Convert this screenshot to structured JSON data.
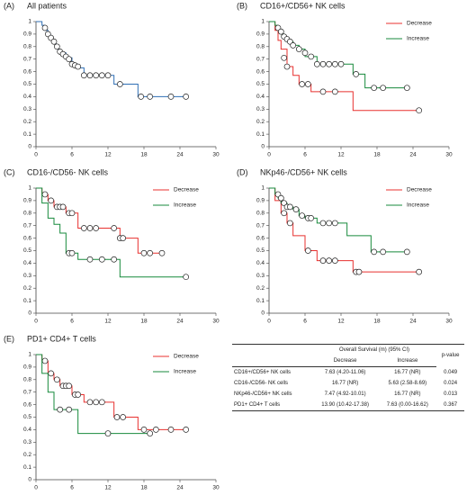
{
  "chart_data": [
    {
      "type": "step",
      "label": "(A)",
      "title": "All patients",
      "xlim": [
        0,
        30
      ],
      "xticks": [
        0,
        6,
        12,
        18,
        24,
        30
      ],
      "ylim": [
        0,
        1
      ],
      "yticks": [
        0,
        0.1,
        0.2,
        0.3,
        0.4,
        0.5,
        0.6,
        0.7,
        0.8,
        0.9,
        1
      ],
      "series": [
        {
          "color": "#2f6fb5",
          "x": [
            0,
            1,
            1.5,
            2,
            2.5,
            3,
            3.5,
            4,
            5,
            6,
            7,
            8,
            13,
            17,
            25
          ],
          "values": [
            1,
            0.97,
            0.93,
            0.89,
            0.86,
            0.82,
            0.78,
            0.75,
            0.71,
            0.66,
            0.63,
            0.57,
            0.5,
            0.4,
            0.4
          ],
          "censored_x": [
            1.5,
            2,
            2.5,
            3,
            3.5,
            4,
            4.5,
            5,
            5.5,
            6,
            6.5,
            7,
            8,
            9,
            10,
            11,
            12,
            14,
            17.5,
            19,
            22.5,
            25
          ],
          "censored_values": [
            0.95,
            0.9,
            0.87,
            0.84,
            0.8,
            0.76,
            0.74,
            0.72,
            0.7,
            0.66,
            0.65,
            0.64,
            0.57,
            0.57,
            0.57,
            0.57,
            0.57,
            0.5,
            0.4,
            0.4,
            0.4,
            0.4
          ]
        }
      ]
    },
    {
      "type": "step",
      "label": "(B)",
      "title": "CD16+/CD56+ NK cells",
      "xlim": [
        0,
        30
      ],
      "xticks": [
        0,
        6,
        12,
        18,
        24,
        30
      ],
      "ylim": [
        0,
        1
      ],
      "yticks": [
        0,
        0.1,
        0.2,
        0.3,
        0.4,
        0.5,
        0.6,
        0.7,
        0.8,
        0.9,
        1
      ],
      "series": [
        {
          "name": "Decrease",
          "color": "#e8312f",
          "x": [
            0,
            1,
            1.5,
            2,
            3,
            4,
            5,
            7,
            14,
            25
          ],
          "values": [
            1,
            0.93,
            0.85,
            0.78,
            0.64,
            0.57,
            0.5,
            0.44,
            0.29,
            0.29
          ],
          "censored_x": [
            2.5,
            3,
            5.5,
            6.5,
            9,
            11,
            25
          ],
          "censored_values": [
            0.71,
            0.64,
            0.5,
            0.5,
            0.44,
            0.44,
            0.29
          ]
        },
        {
          "name": "Increase",
          "color": "#178a3c",
          "x": [
            0,
            1,
            1.5,
            2,
            2.5,
            3,
            4,
            5,
            6,
            8,
            14,
            16,
            23
          ],
          "values": [
            1,
            0.97,
            0.93,
            0.9,
            0.87,
            0.84,
            0.81,
            0.78,
            0.72,
            0.66,
            0.58,
            0.47,
            0.47
          ],
          "censored_x": [
            1.5,
            2,
            2.5,
            3,
            3.5,
            4,
            5,
            6,
            7,
            8,
            9,
            10,
            11,
            12,
            14.5,
            17.5,
            19,
            23
          ],
          "censored_values": [
            0.95,
            0.92,
            0.88,
            0.86,
            0.84,
            0.81,
            0.78,
            0.75,
            0.72,
            0.66,
            0.66,
            0.66,
            0.66,
            0.66,
            0.58,
            0.47,
            0.47,
            0.47
          ]
        }
      ]
    },
    {
      "type": "step",
      "label": "(C)",
      "title": "CD16-/CD56- NK cells",
      "xlim": [
        0,
        30
      ],
      "xticks": [
        0,
        6,
        12,
        18,
        24,
        30
      ],
      "ylim": [
        0,
        1
      ],
      "yticks": [
        0,
        0.1,
        0.2,
        0.3,
        0.4,
        0.5,
        0.6,
        0.7,
        0.8,
        0.9,
        1
      ],
      "series": [
        {
          "name": "Decrease",
          "color": "#e8312f",
          "x": [
            0,
            1,
            2,
            3,
            5,
            7,
            14,
            17,
            21
          ],
          "values": [
            1,
            0.95,
            0.9,
            0.85,
            0.8,
            0.68,
            0.6,
            0.48,
            0.48
          ],
          "censored_x": [
            1.5,
            2.5,
            3.5,
            4,
            4.5,
            5.5,
            6,
            8,
            9,
            10,
            13,
            14,
            14.5,
            18,
            19,
            21
          ],
          "censored_values": [
            0.95,
            0.9,
            0.85,
            0.85,
            0.85,
            0.8,
            0.8,
            0.68,
            0.68,
            0.68,
            0.68,
            0.6,
            0.6,
            0.48,
            0.48,
            0.48
          ]
        },
        {
          "name": "Increase",
          "color": "#178a3c",
          "x": [
            0,
            1,
            2,
            3,
            4,
            5,
            7,
            14,
            25
          ],
          "values": [
            1,
            0.88,
            0.76,
            0.71,
            0.64,
            0.48,
            0.43,
            0.29,
            0.29
          ],
          "censored_x": [
            5.5,
            6,
            9,
            11,
            13,
            25
          ],
          "censored_values": [
            0.48,
            0.48,
            0.43,
            0.43,
            0.43,
            0.29
          ]
        }
      ]
    },
    {
      "type": "step",
      "label": "(D)",
      "title": "NKp46-/CD56+ NK cells",
      "xlim": [
        0,
        30
      ],
      "xticks": [
        0,
        6,
        12,
        18,
        24,
        30
      ],
      "ylim": [
        0,
        1
      ],
      "yticks": [
        0,
        0.1,
        0.2,
        0.3,
        0.4,
        0.5,
        0.6,
        0.7,
        0.8,
        0.9,
        1
      ],
      "series": [
        {
          "name": "Decrease",
          "color": "#e8312f",
          "x": [
            0,
            1,
            2,
            3,
            4,
            6,
            8,
            14,
            25
          ],
          "values": [
            1,
            0.9,
            0.8,
            0.72,
            0.62,
            0.5,
            0.42,
            0.33,
            0.33
          ],
          "censored_x": [
            2.5,
            3.5,
            6.5,
            9,
            10,
            11,
            14.5,
            15,
            25
          ],
          "censored_values": [
            0.8,
            0.72,
            0.5,
            0.42,
            0.42,
            0.42,
            0.33,
            0.33,
            0.33
          ]
        },
        {
          "name": "Increase",
          "color": "#178a3c",
          "x": [
            0,
            1,
            1.5,
            2,
            3,
            4,
            5,
            6,
            8,
            13,
            17,
            23
          ],
          "values": [
            1,
            0.95,
            0.92,
            0.88,
            0.85,
            0.83,
            0.78,
            0.76,
            0.72,
            0.62,
            0.49,
            0.49
          ],
          "censored_x": [
            1.5,
            2,
            2.5,
            3,
            3.5,
            4.5,
            5.5,
            6.5,
            7,
            9,
            10,
            11,
            17.5,
            19,
            23
          ],
          "censored_values": [
            0.95,
            0.92,
            0.88,
            0.85,
            0.85,
            0.83,
            0.78,
            0.76,
            0.76,
            0.72,
            0.72,
            0.72,
            0.49,
            0.49,
            0.49
          ]
        }
      ]
    },
    {
      "type": "step",
      "label": "(E)",
      "title": "PD1+ CD4+ T cells",
      "xlim": [
        0,
        30
      ],
      "xticks": [
        0,
        6,
        12,
        18,
        24,
        30
      ],
      "ylim": [
        0,
        1
      ],
      "yticks": [
        0,
        0.1,
        0.2,
        0.3,
        0.4,
        0.5,
        0.6,
        0.7,
        0.8,
        0.9,
        1
      ],
      "series": [
        {
          "name": "Decrease",
          "color": "#e8312f",
          "x": [
            0,
            1,
            2,
            3,
            4,
            6,
            8,
            13,
            17,
            25
          ],
          "values": [
            1,
            0.95,
            0.85,
            0.8,
            0.75,
            0.68,
            0.62,
            0.5,
            0.4,
            0.4
          ],
          "censored_x": [
            1.5,
            2.5,
            3.5,
            4.5,
            5,
            5.5,
            6.5,
            7,
            9,
            10,
            11,
            13.5,
            14.5,
            18,
            20,
            22.5,
            25
          ],
          "censored_values": [
            0.95,
            0.85,
            0.8,
            0.75,
            0.75,
            0.75,
            0.68,
            0.68,
            0.62,
            0.62,
            0.62,
            0.5,
            0.5,
            0.4,
            0.4,
            0.4,
            0.4
          ]
        },
        {
          "name": "Increase",
          "color": "#178a3c",
          "x": [
            0,
            1,
            2,
            3,
            7,
            19
          ],
          "values": [
            1,
            0.85,
            0.7,
            0.56,
            0.37,
            0.37
          ],
          "censored_x": [
            4,
            5.5,
            12,
            19
          ],
          "censored_values": [
            0.56,
            0.56,
            0.37,
            0.37
          ]
        }
      ]
    }
  ],
  "table": {
    "header": "Overall Survival (m) (95% CI)",
    "pvalue_header": "p-value",
    "subheaders": [
      "Decrease",
      "Increase"
    ],
    "rows": [
      [
        "CD16+/CD56+ NK cells",
        "7.63 (4.20-11.06)",
        "16.77 (NR)",
        "0.049"
      ],
      [
        "CD16-/CD56- NK cells",
        "16.77 (NR)",
        "5.63 (2.58-8.69)",
        "0.024"
      ],
      [
        "NKp46-/CD56+ NK cells",
        "7.47 (4.92-10.01)",
        "16.77 (NR)",
        "0.013"
      ],
      [
        "PD1+ CD4+ T cells",
        "13.90 (10.42-17.38)",
        "7.63 (0.00-16.62)",
        "0.367"
      ]
    ]
  }
}
